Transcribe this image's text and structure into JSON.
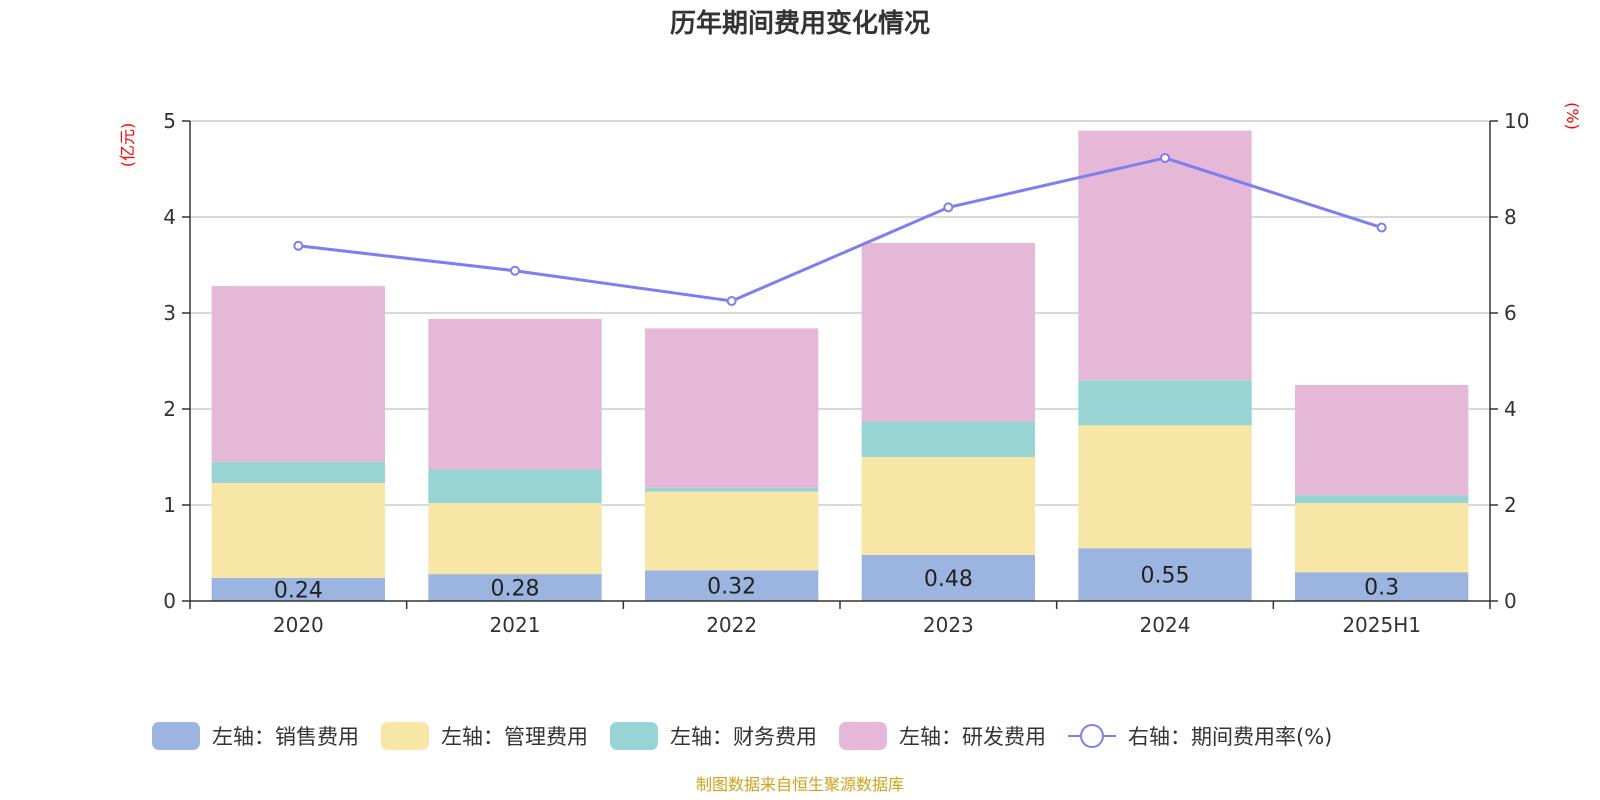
{
  "chart_data": {
    "type": "bar",
    "title": "历年期间费用变化情况",
    "left_axis_unit": "(亿元)",
    "right_axis_unit": "(%)",
    "categories": [
      "2020",
      "2021",
      "2022",
      "2023",
      "2024",
      "2025H1"
    ],
    "left_ylim": [
      0,
      5
    ],
    "left_yticks": [
      "0",
      "1",
      "2",
      "3",
      "4",
      "5"
    ],
    "right_ylim": [
      0,
      10
    ],
    "right_yticks": [
      "0",
      "2",
      "4",
      "6",
      "8",
      "10"
    ],
    "grid": true,
    "legend_position": "bottom",
    "series": [
      {
        "name": "左轴：销售费用",
        "type": "bar",
        "stack": true,
        "color": "#9bb5e0",
        "values": [
          0.24,
          0.28,
          0.32,
          0.48,
          0.55,
          0.3
        ],
        "labels": [
          "0.24",
          "0.28",
          "0.32",
          "0.48",
          "0.55",
          "0.3"
        ]
      },
      {
        "name": "左轴：管理费用",
        "type": "bar",
        "stack": true,
        "color": "#f7e6a6",
        "values": [
          0.99,
          0.74,
          0.82,
          1.02,
          1.28,
          0.72
        ]
      },
      {
        "name": "左轴：财务费用",
        "type": "bar",
        "stack": true,
        "color": "#98d4d4",
        "values": [
          0.22,
          0.35,
          0.04,
          0.37,
          0.47,
          0.08
        ]
      },
      {
        "name": "左轴：研发费用",
        "type": "bar",
        "stack": true,
        "color": "#e6b8d8",
        "values": [
          1.83,
          1.57,
          1.66,
          1.86,
          2.6,
          1.15
        ]
      },
      {
        "name": "右轴：期间费用率(%)",
        "type": "line",
        "axis": "right",
        "color": "#7b7ff0",
        "values": [
          7.4,
          6.88,
          6.25,
          8.2,
          9.23,
          7.78
        ]
      }
    ],
    "source": "制图数据来自恒生聚源数据库"
  }
}
